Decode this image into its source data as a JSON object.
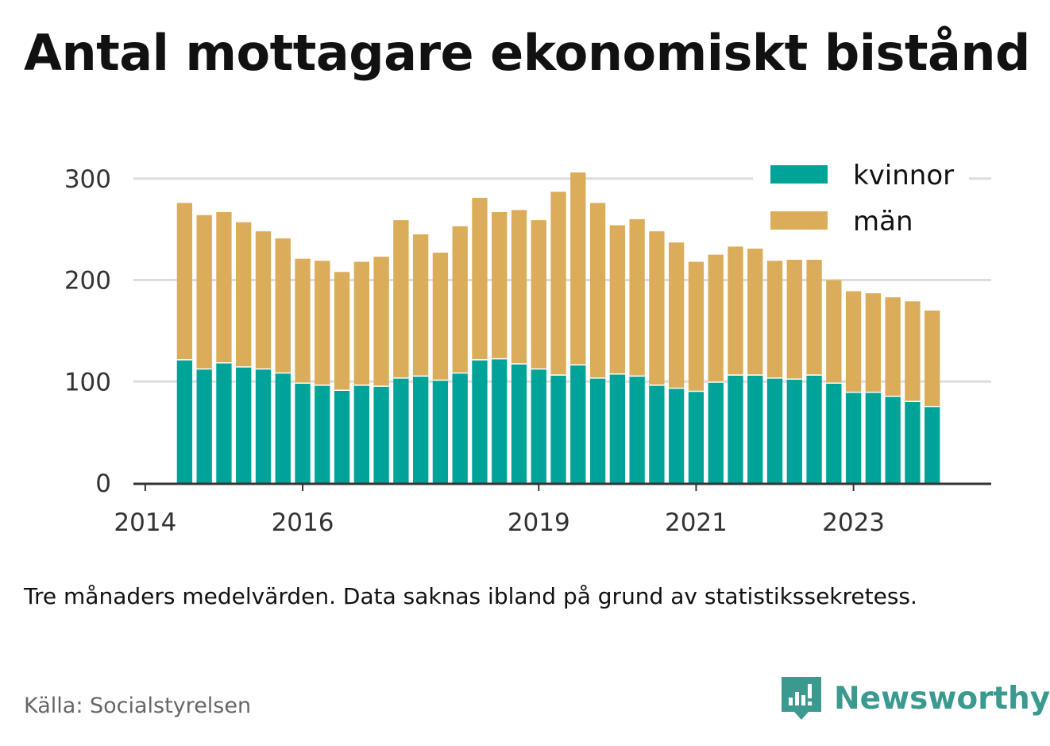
{
  "title": "Antal mottagare ekonomiskt bistånd",
  "note": "Tre månaders medelvärden. Data saknas ibland på grund av statistikssekretess.",
  "source": "Källa: Socialstyrelsen",
  "brand": {
    "name": "Newsworthy",
    "icon": "newsworthy-logo-icon"
  },
  "colors": {
    "kvinnor": "#00a398",
    "man": "#dbac5a",
    "grid": "#dddddd",
    "axis": "#333333"
  },
  "chart_data": {
    "type": "bar",
    "stacked": true,
    "x_ticks": [
      "2014",
      "2016",
      "2019",
      "2021",
      "2023"
    ],
    "x_tick_positions": [
      2014,
      2016,
      2019,
      2021,
      2023
    ],
    "categories": [
      "2014-Q3",
      "2014-Q4",
      "2015-Q1",
      "2015-Q2",
      "2015-Q3",
      "2015-Q4",
      "2016-Q1",
      "2016-Q2",
      "2016-Q3",
      "2016-Q4",
      "2017-Q1",
      "2017-Q2",
      "2017-Q3",
      "2017-Q4",
      "2018-Q1",
      "2018-Q2",
      "2018-Q3",
      "2018-Q4",
      "2019-Q1",
      "2019-Q2",
      "2019-Q3",
      "2019-Q4",
      "2020-Q1",
      "2020-Q2",
      "2020-Q3",
      "2020-Q4",
      "2021-Q1",
      "2021-Q2",
      "2021-Q3",
      "2021-Q4",
      "2022-Q1",
      "2022-Q2",
      "2022-Q3",
      "2022-Q4",
      "2023-Q1",
      "2023-Q2",
      "2023-Q3",
      "2023-Q4",
      "2024-Q1"
    ],
    "x": [
      2014.5,
      2014.75,
      2015.0,
      2015.25,
      2015.5,
      2015.75,
      2016.0,
      2016.25,
      2016.5,
      2016.75,
      2017.0,
      2017.25,
      2017.5,
      2017.75,
      2018.0,
      2018.25,
      2018.5,
      2018.75,
      2019.0,
      2019.25,
      2019.5,
      2019.75,
      2020.0,
      2020.25,
      2020.5,
      2020.75,
      2021.0,
      2021.25,
      2021.5,
      2021.75,
      2022.0,
      2022.25,
      2022.5,
      2022.75,
      2023.0,
      2023.25,
      2023.5,
      2023.75,
      2024.0
    ],
    "series": [
      {
        "name": "kvinnor",
        "values": [
          122,
          113,
          119,
          115,
          113,
          109,
          99,
          97,
          92,
          97,
          96,
          104,
          106,
          102,
          109,
          122,
          123,
          118,
          113,
          107,
          117,
          104,
          108,
          106,
          97,
          94,
          91,
          100,
          107,
          107,
          104,
          103,
          107,
          99,
          90,
          90,
          86,
          81,
          76
        ]
      },
      {
        "name": "män",
        "values": [
          154,
          151,
          148,
          142,
          135,
          132,
          122,
          122,
          116,
          121,
          127,
          155,
          139,
          125,
          144,
          159,
          144,
          151,
          146,
          180,
          189,
          172,
          146,
          154,
          151,
          143,
          127,
          125,
          126,
          124,
          115,
          117,
          113,
          101,
          99,
          97,
          97,
          98,
          94
        ]
      }
    ],
    "ylim": [
      0,
      310
    ],
    "y_ticks": [
      0,
      100,
      200,
      300
    ],
    "xlim": [
      2013.85,
      2024.75
    ],
    "grid": true,
    "legend": "top-right",
    "xlabel": "",
    "ylabel": ""
  }
}
